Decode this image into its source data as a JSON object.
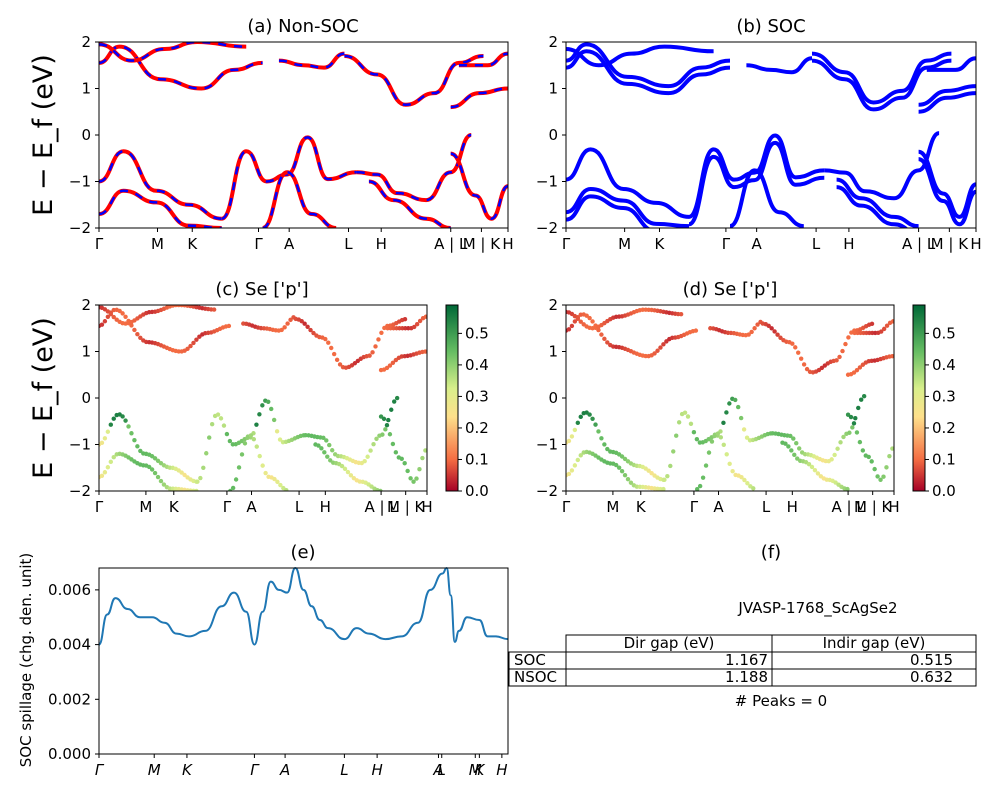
{
  "figure": {
    "ylabel_energy": "E − E_f (eV)",
    "kpath_labels": [
      "Γ",
      "M",
      "K",
      "Γ",
      "A",
      "L",
      "H",
      "A | L",
      "M | K",
      "H"
    ],
    "kpath_labels_e": [
      "Γ",
      "M",
      "K",
      "Γ",
      "A",
      "L",
      "H",
      "A",
      "L",
      "M",
      "K",
      "H"
    ],
    "cbar_ticks": [
      "0.0",
      "0.1",
      "0.2",
      "0.3",
      "0.4",
      "0.5"
    ]
  },
  "chart_data": [
    {
      "panel": "a",
      "type": "line",
      "title": "(a) Non-SOC",
      "ylabel": "E − E_f (eV)",
      "ylim": [
        -2,
        2
      ],
      "yticks": [
        -2,
        -1,
        0,
        1,
        2
      ],
      "series_colors": [
        "#ff0000",
        "#0000ff"
      ],
      "bands_approx": [
        {
          "x": [
            0,
            0.05,
            0.15,
            0.25,
            0.33,
            0.4
          ],
          "y": [
            1.55,
            1.9,
            1.2,
            1.0,
            1.4,
            1.55
          ]
        },
        {
          "x": [
            0.44,
            0.5,
            0.55,
            0.6
          ],
          "y": [
            1.6,
            1.5,
            1.45,
            1.75
          ]
        },
        {
          "x": [
            0.6,
            0.68,
            0.75,
            0.82,
            0.88,
            0.94
          ],
          "y": [
            1.7,
            1.3,
            0.65,
            0.9,
            1.55,
            1.7
          ]
        },
        {
          "x": [
            0,
            0.06,
            0.14,
            0.22,
            0.3
          ],
          "y": [
            -1.0,
            -0.35,
            -1.2,
            -1.5,
            -1.8
          ]
        },
        {
          "x": [
            0.3,
            0.36,
            0.41,
            0.46,
            0.51,
            0.56,
            0.63
          ],
          "y": [
            -1.8,
            -0.35,
            -1.0,
            -0.85,
            -0.05,
            -0.95,
            -0.8
          ]
        },
        {
          "x": [
            0.63,
            0.68,
            0.73,
            0.8,
            0.86,
            0.91
          ],
          "y": [
            -0.8,
            -0.85,
            -1.25,
            -1.4,
            -0.8,
            0.0
          ]
        },
        {
          "x": [
            0,
            0.06,
            0.14,
            0.22,
            0.3
          ],
          "y": [
            -1.7,
            -1.2,
            -1.45,
            -1.95,
            -2.0
          ]
        }
      ]
    },
    {
      "panel": "b",
      "type": "line",
      "title": "(b) SOC",
      "ylabel": "",
      "ylim": [
        -2,
        2
      ],
      "yticks": [
        -2,
        -1,
        0,
        1,
        2
      ],
      "series_colors": [
        "#0000ff"
      ]
    },
    {
      "panel": "c",
      "type": "scatter",
      "title": "(c)  Se ['p']",
      "ylabel": "E − E_f (eV)",
      "ylim": [
        -2,
        2
      ],
      "yticks": [
        -2,
        -1,
        0,
        1,
        2
      ],
      "colormap": "RdYlGn",
      "clim": [
        0.0,
        0.59
      ]
    },
    {
      "panel": "d",
      "type": "scatter",
      "title": "(d) Se ['p']",
      "ylabel": "",
      "ylim": [
        -2,
        2
      ],
      "yticks": [
        -2,
        -1,
        0,
        1,
        2
      ],
      "colormap": "RdYlGn",
      "clim": [
        0.0,
        0.59
      ]
    },
    {
      "panel": "e",
      "type": "line",
      "title": "(e)",
      "ylabel": "SOC spillage (chg. den. unit)",
      "ylim": [
        0.0,
        0.0068
      ],
      "yticks": [
        "0.000",
        "0.002",
        "0.004",
        "0.006"
      ],
      "x": [
        0.0,
        0.02,
        0.04,
        0.07,
        0.1,
        0.13,
        0.16,
        0.19,
        0.22,
        0.26,
        0.3,
        0.33,
        0.36,
        0.38,
        0.4,
        0.42,
        0.44,
        0.46,
        0.48,
        0.5,
        0.52,
        0.54,
        0.56,
        0.6,
        0.63,
        0.66,
        0.7,
        0.74,
        0.78,
        0.81,
        0.84,
        0.85,
        0.86,
        0.87,
        0.88,
        0.9,
        0.93,
        0.95,
        0.97,
        1.0
      ],
      "values": [
        0.004,
        0.0051,
        0.0057,
        0.0053,
        0.005,
        0.005,
        0.0048,
        0.0044,
        0.0043,
        0.0045,
        0.0054,
        0.0059,
        0.0052,
        0.004,
        0.0052,
        0.0063,
        0.006,
        0.0059,
        0.0068,
        0.006,
        0.0054,
        0.0049,
        0.0046,
        0.0042,
        0.0046,
        0.0044,
        0.0042,
        0.0043,
        0.0048,
        0.006,
        0.0066,
        0.0068,
        0.0058,
        0.0041,
        0.0045,
        0.005,
        0.0049,
        0.0043,
        0.0043,
        0.0042
      ],
      "color": "#1f77b4"
    }
  ],
  "panel_f": {
    "title": "(f)",
    "material": "JVASP-1768_ScAgSe2",
    "headers": [
      "Dir gap (eV)",
      "Indir gap (eV)"
    ],
    "rows": [
      {
        "label": "SOC",
        "dir": "1.167",
        "indir": "0.515"
      },
      {
        "label": "NSOC",
        "dir": "1.188",
        "indir": "0.632"
      }
    ],
    "peaks": "# Peaks = 0"
  }
}
